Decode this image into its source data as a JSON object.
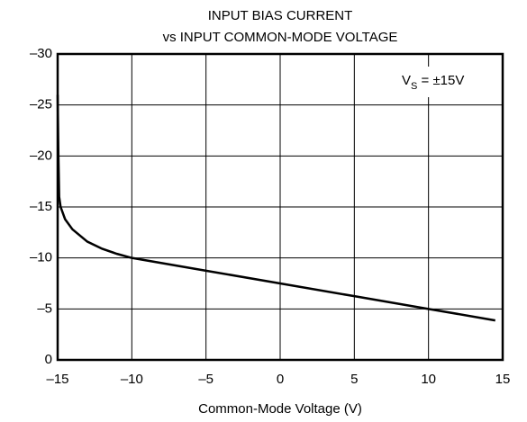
{
  "chart_data": {
    "type": "line",
    "title": [
      "INPUT BIAS CURRENT",
      "vs INPUT COMMON-MODE VOLTAGE"
    ],
    "x_label": "Common-Mode Voltage (V)",
    "annotation": {
      "text": "V",
      "subscript": "S",
      "suffix": " = ±15V"
    },
    "x": [
      -15,
      -14.95,
      -14.9,
      -14.8,
      -14.5,
      -14,
      -13,
      -12,
      -11,
      -10,
      -5,
      0,
      5,
      10,
      14.5
    ],
    "values": [
      -26,
      -20,
      -16,
      -15,
      -13.8,
      -12.8,
      -11.6,
      -10.9,
      -10.4,
      -10,
      -8.75,
      -7.5,
      -6.25,
      -5,
      -3.875
    ],
    "color": "#000000",
    "xlim": [
      -15,
      15
    ],
    "ylim": [
      0,
      -30
    ],
    "xticks": [
      {
        "value": -15,
        "label": "–15"
      },
      {
        "value": -10,
        "label": "–10"
      },
      {
        "value": -5,
        "label": "–5"
      },
      0,
      5,
      10,
      15
    ],
    "yticks": [
      0,
      {
        "value": -5,
        "label": "–5"
      },
      {
        "value": -10,
        "label": "–10"
      },
      {
        "value": -15,
        "label": "–15"
      },
      {
        "value": -20,
        "label": "–20"
      },
      {
        "value": -25,
        "label": "–25"
      },
      {
        "value": -30,
        "label": "–30"
      }
    ],
    "grid": true
  }
}
